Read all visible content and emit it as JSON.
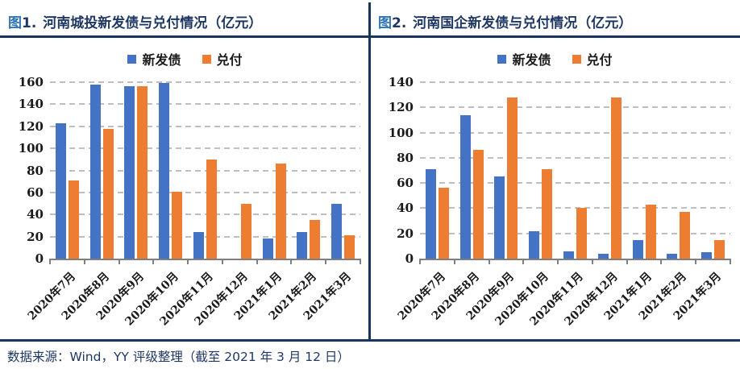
{
  "header": {
    "figures": [
      {
        "fig_char": "图",
        "fig_num": "1.",
        "title": "河南城投新发债与兑付情况（亿元）"
      },
      {
        "fig_char": "图",
        "fig_num": "2.",
        "title": "河南国企新发债与兑付情况（亿元）"
      }
    ]
  },
  "footer": {
    "source": "数据来源：Wind，YY 评级整理（截至 2021 年 3 月 12 日）"
  },
  "colors": {
    "divider_navy": "#17365D",
    "title_navy": "#1F3864",
    "figure_label_blue": "#2E74B5",
    "series_blue": "#4472C4",
    "series_orange": "#ED7D31",
    "gridline_gray": "#BFBFBF",
    "axis_gray": "#7F7F7F"
  },
  "chart_data": [
    {
      "type": "bar",
      "title": "图1. 河南城投新发债与兑付情况（亿元）",
      "categories": [
        "2020年7月",
        "2020年8月",
        "2020年9月",
        "2020年10月",
        "2020年11月",
        "2020年12月",
        "2021年1月",
        "2021年2月",
        "2021年3月"
      ],
      "series": [
        {
          "name": "新发债",
          "color": "#4472C4",
          "values": [
            123,
            158,
            156,
            159,
            24,
            0,
            18,
            24,
            50
          ]
        },
        {
          "name": "兑付",
          "color": "#ED7D31",
          "values": [
            71,
            118,
            156,
            61,
            90,
            50,
            86,
            35,
            21
          ]
        }
      ],
      "ylim": [
        0,
        160
      ],
      "ytick_step": 20,
      "grid": true,
      "gridline_style": "dashed",
      "legend_position": "top"
    },
    {
      "type": "bar",
      "title": "图2. 河南国企新发债与兑付情况（亿元）",
      "categories": [
        "2020年7月",
        "2020年8月",
        "2020年9月",
        "2020年10月",
        "2020年11月",
        "2020年12月",
        "2021年1月",
        "2021年2月",
        "2021年3月"
      ],
      "series": [
        {
          "name": "新发债",
          "color": "#4472C4",
          "values": [
            71,
            114,
            65,
            22,
            6,
            4,
            15,
            4,
            5
          ]
        },
        {
          "name": "兑付",
          "color": "#ED7D31",
          "values": [
            56,
            86,
            128,
            71,
            40,
            128,
            43,
            37,
            15
          ]
        }
      ],
      "ylim": [
        0,
        140
      ],
      "ytick_step": 20,
      "grid": true,
      "gridline_style": "dashed",
      "legend_position": "top"
    }
  ]
}
